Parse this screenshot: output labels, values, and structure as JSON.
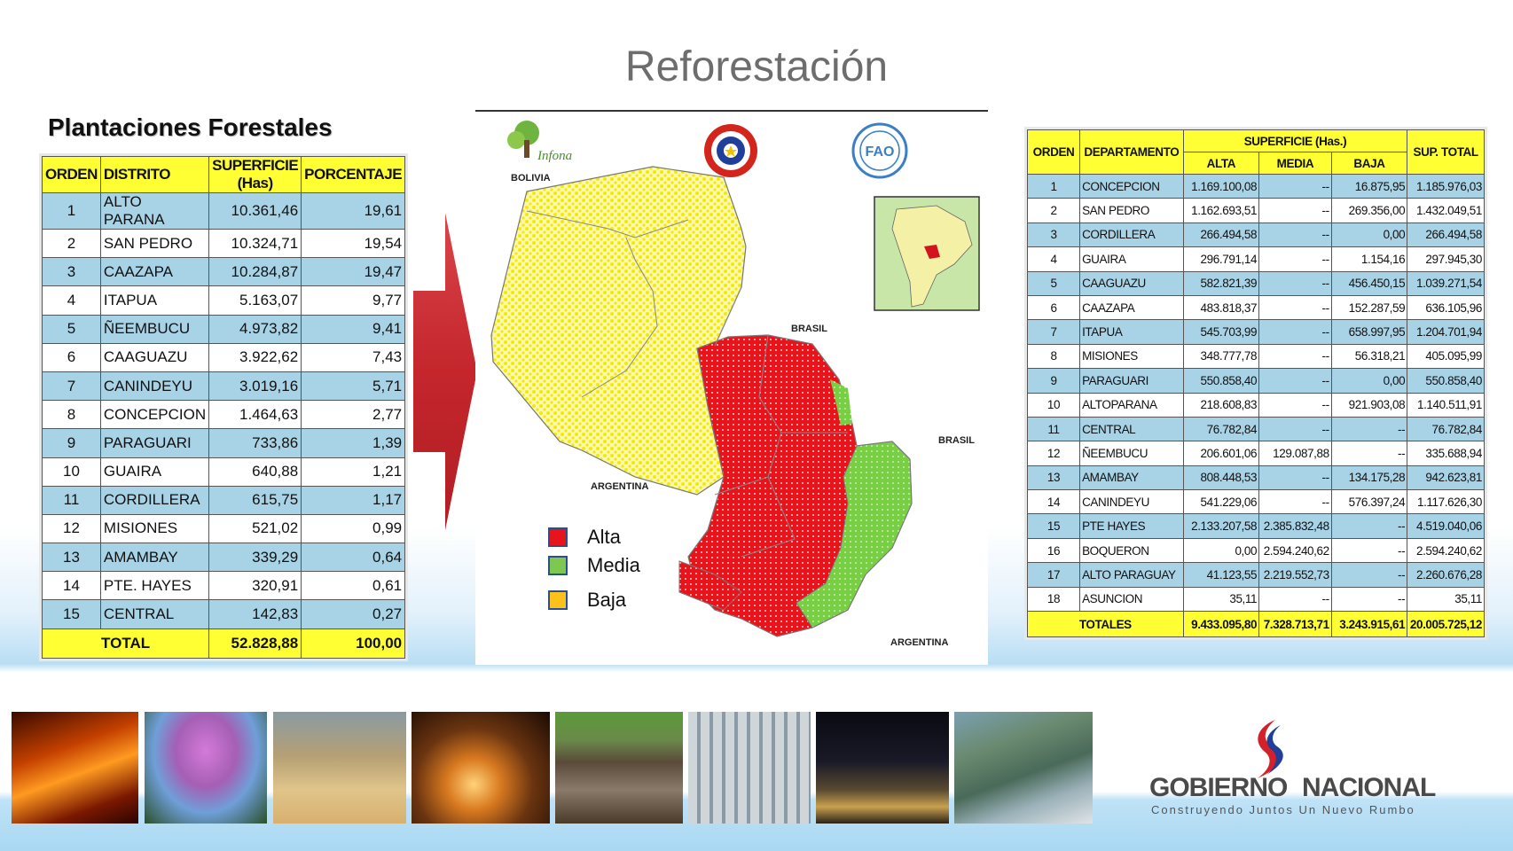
{
  "title": "Reforestación",
  "subtitle": "Plantaciones Forestales",
  "left_table": {
    "headers": [
      "ORDEN",
      "DISTRITO",
      "SUPERFICIE (Has)",
      "PORCENTAJE"
    ],
    "rows": [
      [
        "1",
        "ALTO PARANA",
        "10.361,46",
        "19,61"
      ],
      [
        "2",
        "SAN PEDRO",
        "10.324,71",
        "19,54"
      ],
      [
        "3",
        "CAAZAPA",
        "10.284,87",
        "19,47"
      ],
      [
        "4",
        "ITAPUA",
        "5.163,07",
        "9,77"
      ],
      [
        "5",
        "ÑEEMBUCU",
        "4.973,82",
        "9,41"
      ],
      [
        "6",
        "CAAGUAZU",
        "3.922,62",
        "7,43"
      ],
      [
        "7",
        "CANINDEYU",
        "3.019,16",
        "5,71"
      ],
      [
        "8",
        "CONCEPCION",
        "1.464,63",
        "2,77"
      ],
      [
        "9",
        "PARAGUARI",
        "733,86",
        "1,39"
      ],
      [
        "10",
        "GUAIRA",
        "640,88",
        "1,21"
      ],
      [
        "11",
        "CORDILLERA",
        "615,75",
        "1,17"
      ],
      [
        "12",
        "MISIONES",
        "521,02",
        "0,99"
      ],
      [
        "13",
        "AMAMBAY",
        "339,29",
        "0,64"
      ],
      [
        "14",
        "PTE. HAYES",
        "320,91",
        "0,61"
      ],
      [
        "15",
        "CENTRAL",
        "142,83",
        "0,27"
      ]
    ],
    "total": [
      "TOTAL",
      "52.828,88",
      "100,00"
    ]
  },
  "right_table": {
    "headers": {
      "orden": "ORDEN",
      "departamento": "DEPARTAMENTO",
      "superficie": "SUPERFICIE (Has.)",
      "alta": "ALTA",
      "media": "MEDIA",
      "baja": "BAJA",
      "sup_total": "SUP. TOTAL"
    },
    "rows": [
      [
        "1",
        "CONCEPCION",
        "1.169.100,08",
        "--",
        "16.875,95",
        "1.185.976,03"
      ],
      [
        "2",
        "SAN PEDRO",
        "1.162.693,51",
        "--",
        "269.356,00",
        "1.432.049,51"
      ],
      [
        "3",
        "CORDILLERA",
        "266.494,58",
        "--",
        "0,00",
        "266.494,58"
      ],
      [
        "4",
        "GUAIRA",
        "296.791,14",
        "--",
        "1.154,16",
        "297.945,30"
      ],
      [
        "5",
        "CAAGUAZU",
        "582.821,39",
        "--",
        "456.450,15",
        "1.039.271,54"
      ],
      [
        "6",
        "CAAZAPA",
        "483.818,37",
        "--",
        "152.287,59",
        "636.105,96"
      ],
      [
        "7",
        "ITAPUA",
        "545.703,99",
        "--",
        "658.997,95",
        "1.204.701,94"
      ],
      [
        "8",
        "MISIONES",
        "348.777,78",
        "--",
        "56.318,21",
        "405.095,99"
      ],
      [
        "9",
        "PARAGUARI",
        "550.858,40",
        "--",
        "0,00",
        "550.858,40"
      ],
      [
        "10",
        "ALTOPARANA",
        "218.608,83",
        "--",
        "921.903,08",
        "1.140.511,91"
      ],
      [
        "11",
        "CENTRAL",
        "76.782,84",
        "--",
        "--",
        "76.782,84"
      ],
      [
        "12",
        "ÑEEMBUCU",
        "206.601,06",
        "129.087,88",
        "--",
        "335.688,94"
      ],
      [
        "13",
        "AMAMBAY",
        "808.448,53",
        "--",
        "134.175,28",
        "942.623,81"
      ],
      [
        "14",
        "CANINDEYU",
        "541.229,06",
        "--",
        "576.397,24",
        "1.117.626,30"
      ],
      [
        "15",
        "PTE HAYES",
        "2.133.207,58",
        "2.385.832,48",
        "--",
        "4.519.040,06"
      ],
      [
        "16",
        "BOQUERON",
        "0,00",
        "2.594.240,62",
        "--",
        "2.594.240,62"
      ],
      [
        "17",
        "ALTO PARAGUAY",
        "41.123,55",
        "2.219.552,73",
        "--",
        "2.260.676,28"
      ],
      [
        "18",
        "ASUNCION",
        "35,11",
        "--",
        "--",
        "35,11"
      ]
    ],
    "total": [
      "TOTALES",
      "9.433.095,80",
      "7.328.713,71",
      "3.243.915,61",
      "20.005.725,12"
    ]
  },
  "map": {
    "labels": {
      "bolivia": "BOLIVIA",
      "brasil_top": "BRASIL",
      "brasil_right": "BRASIL",
      "argentina_left": "ARGENTINA",
      "argentina_bottom": "ARGENTINA"
    },
    "logo_infona": "Infona",
    "logo_fao": "FAO",
    "legend": [
      {
        "label": "Alta",
        "color": "#e8141c"
      },
      {
        "label": "Media",
        "color": "#7ec850"
      },
      {
        "label": "Baja",
        "color": "#fcc21b"
      }
    ]
  },
  "colors": {
    "header_yellow": "#ffff33",
    "row_blue": "#a8d3e6",
    "arrow_red": "#c8282d",
    "map_yellow": "#f5f000",
    "map_red": "#e8141c",
    "map_green": "#7ed04a"
  },
  "photo_strip": [
    "palace-photo",
    "lapacho-tree-photo",
    "soybean-harvest-photo",
    "sunset-palms-photo",
    "cattle-herd-photo",
    "meat-plant-photo",
    "port-night-photo",
    "river-barge-photo"
  ],
  "footer_logo": {
    "name_part1": "GOBIERNO",
    "name_part2": "NACIONAL",
    "tagline": "Construyendo Juntos Un Nuevo Rumbo"
  }
}
